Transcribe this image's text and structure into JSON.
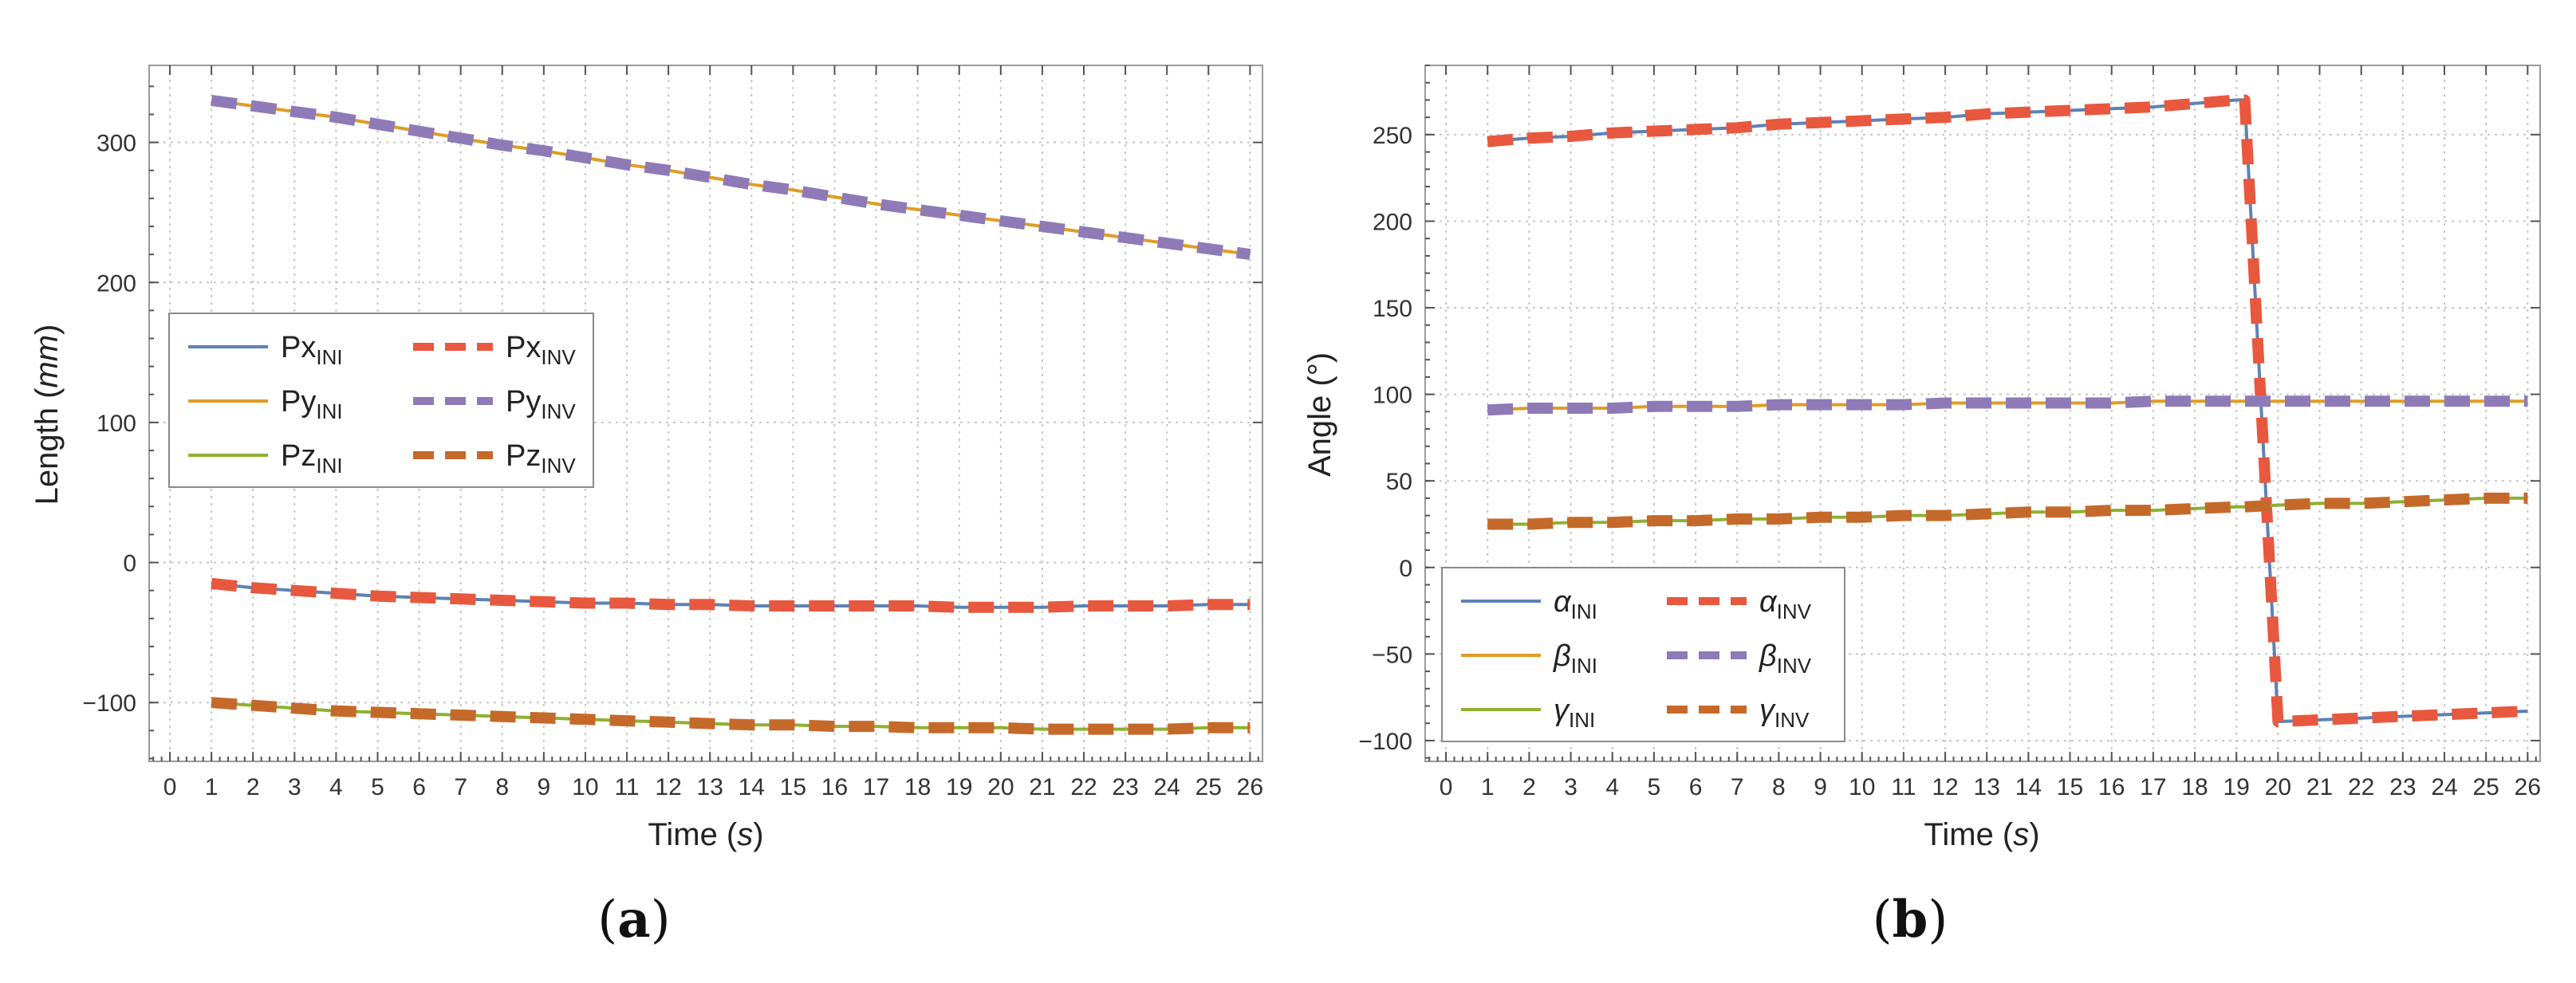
{
  "chart_data": [
    {
      "type": "line",
      "panel_label": "(a)",
      "xlabel": "Time",
      "xunit": "s",
      "ylabel": "Length",
      "yunit": "mm",
      "xlim": [
        -0.5,
        26.3
      ],
      "ylim": [
        -142,
        355
      ],
      "xticks": [
        0,
        1,
        2,
        3,
        4,
        5,
        6,
        7,
        8,
        9,
        10,
        11,
        12,
        13,
        14,
        15,
        16,
        17,
        18,
        19,
        20,
        21,
        22,
        23,
        24,
        25,
        26
      ],
      "yticks": [
        -100,
        0,
        100,
        200,
        300
      ],
      "ytick_labels": [
        "−100",
        "0",
        "100",
        "200",
        "300"
      ],
      "grid": true,
      "legend_position": "center-left",
      "legend_rows": [
        [
          "Px_INI",
          "Px_INV"
        ],
        [
          "Py_INI",
          "Py_INV"
        ],
        [
          "Pz_INI",
          "Pz_INV"
        ]
      ],
      "x": [
        1,
        2,
        3,
        4,
        5,
        6,
        7,
        8,
        9,
        10,
        11,
        12,
        13,
        14,
        15,
        16,
        17,
        18,
        19,
        20,
        21,
        22,
        23,
        24,
        25,
        26
      ],
      "series": [
        {
          "key": "Px_INI",
          "base": "Px",
          "sub": "INI",
          "style": "solid",
          "color": "#5e81b5",
          "values": [
            -15,
            -18,
            -20,
            -22,
            -24,
            -25,
            -26,
            -27,
            -28,
            -29,
            -29,
            -30,
            -30,
            -31,
            -31,
            -31,
            -31,
            -31,
            -32,
            -32,
            -32,
            -31,
            -31,
            -31,
            -30,
            -30
          ]
        },
        {
          "key": "Px_INV",
          "base": "Px",
          "sub": "INV",
          "style": "dashed",
          "color": "#e8583e",
          "values": [
            -15,
            -18,
            -20,
            -22,
            -24,
            -25,
            -26,
            -27,
            -28,
            -29,
            -29,
            -30,
            -30,
            -31,
            -31,
            -31,
            -31,
            -31,
            -32,
            -32,
            -32,
            -31,
            -31,
            -31,
            -30,
            -30
          ]
        },
        {
          "key": "Py_INI",
          "base": "Py",
          "sub": "INI",
          "style": "solid",
          "color": "#e19c24",
          "values": [
            330,
            326,
            322,
            318,
            313,
            308,
            303,
            298,
            294,
            289,
            284,
            280,
            275,
            270,
            266,
            261,
            256,
            252,
            248,
            244,
            240,
            236,
            232,
            228,
            224,
            220
          ]
        },
        {
          "key": "Py_INV",
          "base": "Py",
          "sub": "INV",
          "style": "dashed",
          "color": "#8f7ab8",
          "values": [
            330,
            326,
            322,
            318,
            313,
            308,
            303,
            298,
            294,
            289,
            284,
            280,
            275,
            270,
            266,
            261,
            256,
            252,
            248,
            244,
            240,
            236,
            232,
            228,
            224,
            220
          ]
        },
        {
          "key": "Pz_INI",
          "base": "Pz",
          "sub": "INI",
          "style": "solid",
          "color": "#8fb032",
          "values": [
            -100,
            -102,
            -104,
            -106,
            -107,
            -108,
            -109,
            -110,
            -111,
            -112,
            -113,
            -114,
            -115,
            -116,
            -116,
            -117,
            -117,
            -118,
            -118,
            -118,
            -119,
            -119,
            -119,
            -119,
            -118,
            -118
          ]
        },
        {
          "key": "Pz_INV",
          "base": "Pz",
          "sub": "INV",
          "style": "dashed",
          "color": "#c5692b",
          "values": [
            -100,
            -102,
            -104,
            -106,
            -107,
            -108,
            -109,
            -110,
            -111,
            -112,
            -113,
            -114,
            -115,
            -116,
            -116,
            -117,
            -117,
            -118,
            -118,
            -118,
            -119,
            -119,
            -119,
            -119,
            -118,
            -118
          ]
        }
      ]
    },
    {
      "type": "line",
      "panel_label": "(b)",
      "xlabel": "Time",
      "xunit": "s",
      "ylabel": "Angle",
      "yunit": "°",
      "xlim": [
        -0.5,
        26.3
      ],
      "ylim": [
        -112,
        290
      ],
      "xticks": [
        0,
        1,
        2,
        3,
        4,
        5,
        6,
        7,
        8,
        9,
        10,
        11,
        12,
        13,
        14,
        15,
        16,
        17,
        18,
        19,
        20,
        21,
        22,
        23,
        24,
        25,
        26
      ],
      "yticks": [
        -100,
        -50,
        0,
        50,
        100,
        150,
        200,
        250
      ],
      "ytick_labels": [
        "−100",
        "−50",
        "0",
        "50",
        "100",
        "150",
        "200",
        "250"
      ],
      "grid": true,
      "legend_position": "bottom-left",
      "legend_rows": [
        [
          "alpha_INI",
          "alpha_INV"
        ],
        [
          "beta_INI",
          "beta_INV"
        ],
        [
          "gamma_INI",
          "gamma_INV"
        ]
      ],
      "x": [
        1,
        2,
        3,
        4,
        5,
        6,
        7,
        8,
        9,
        10,
        11,
        12,
        13,
        14,
        15,
        16,
        17,
        18,
        19,
        19.2,
        20,
        21,
        22,
        23,
        24,
        25,
        26
      ],
      "series": [
        {
          "key": "alpha_INI",
          "base": "α",
          "sub": "INI",
          "style": "solid",
          "color": "#5e81b5",
          "values": [
            246,
            248,
            249,
            251,
            252,
            253,
            254,
            256,
            257,
            258,
            259,
            260,
            262,
            263,
            264,
            265,
            266,
            268,
            270,
            270,
            -89,
            -88,
            -87,
            -86,
            -85,
            -84,
            -83
          ]
        },
        {
          "key": "alpha_INV",
          "base": "α",
          "sub": "INV",
          "style": "dashed",
          "color": "#e8583e",
          "values": [
            246,
            248,
            249,
            251,
            252,
            253,
            254,
            256,
            257,
            258,
            259,
            260,
            262,
            263,
            264,
            265,
            266,
            268,
            270,
            270,
            -89,
            -88,
            -87,
            -86,
            -85,
            -84,
            -83
          ]
        },
        {
          "key": "beta_INI",
          "base": "β",
          "sub": "INI",
          "style": "solid",
          "color": "#e19c24",
          "values": [
            91,
            92,
            92,
            92,
            93,
            93,
            93,
            94,
            94,
            94,
            94,
            95,
            95,
            95,
            95,
            95,
            96,
            96,
            96,
            96,
            96,
            96,
            96,
            96,
            96,
            96,
            96
          ]
        },
        {
          "key": "beta_INV",
          "base": "β",
          "sub": "INV",
          "style": "dashed",
          "color": "#8f7ab8",
          "values": [
            91,
            92,
            92,
            92,
            93,
            93,
            93,
            94,
            94,
            94,
            94,
            95,
            95,
            95,
            95,
            95,
            96,
            96,
            96,
            96,
            96,
            96,
            96,
            96,
            96,
            96,
            96
          ]
        },
        {
          "key": "gamma_INI",
          "base": "γ",
          "sub": "INI",
          "style": "solid",
          "color": "#8fb032",
          "values": [
            25,
            25,
            26,
            26,
            27,
            27,
            28,
            28,
            29,
            29,
            30,
            30,
            31,
            32,
            32,
            33,
            33,
            34,
            35,
            35,
            36,
            37,
            37,
            38,
            39,
            40,
            40
          ]
        },
        {
          "key": "gamma_INV",
          "base": "γ",
          "sub": "INV",
          "style": "dashed",
          "color": "#c5692b",
          "values": [
            25,
            25,
            26,
            26,
            27,
            27,
            28,
            28,
            29,
            29,
            30,
            30,
            31,
            32,
            32,
            33,
            33,
            34,
            35,
            35,
            36,
            37,
            37,
            38,
            39,
            40,
            40
          ]
        }
      ]
    }
  ]
}
